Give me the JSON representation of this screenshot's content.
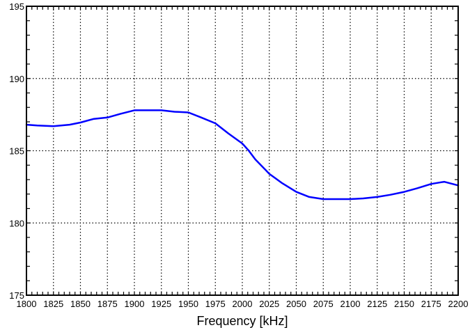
{
  "chart_data": {
    "type": "line",
    "title": "",
    "xlabel": "Frequency [kHz]",
    "ylabel": "",
    "xlim": [
      1800,
      2200
    ],
    "ylim": [
      175,
      195
    ],
    "x_ticks": [
      1800,
      1825,
      1850,
      1875,
      1900,
      1925,
      1950,
      1975,
      2000,
      2025,
      2050,
      2075,
      2100,
      2125,
      2150,
      2175,
      2200
    ],
    "y_ticks": [
      175,
      180,
      185,
      190,
      195
    ],
    "grid": true,
    "line_color": "#0000ff",
    "series": [
      {
        "x": [
          1800,
          1810,
          1825,
          1840,
          1850,
          1862,
          1875,
          1887,
          1900,
          1912,
          1925,
          1937,
          1950,
          1962,
          1975,
          1987,
          2000,
          2006,
          2012,
          2025,
          2037,
          2050,
          2062,
          2075,
          2087,
          2100,
          2112,
          2125,
          2137,
          2150,
          2162,
          2175,
          2187,
          2200
        ],
        "y": [
          186.8,
          186.75,
          186.7,
          186.8,
          186.95,
          187.2,
          187.3,
          187.55,
          187.8,
          187.8,
          187.8,
          187.7,
          187.65,
          187.3,
          186.9,
          186.2,
          185.5,
          185.0,
          184.4,
          183.4,
          182.75,
          182.15,
          181.8,
          181.65,
          181.65,
          181.65,
          181.7,
          181.8,
          181.95,
          182.15,
          182.4,
          182.7,
          182.85,
          182.6
        ]
      }
    ]
  }
}
